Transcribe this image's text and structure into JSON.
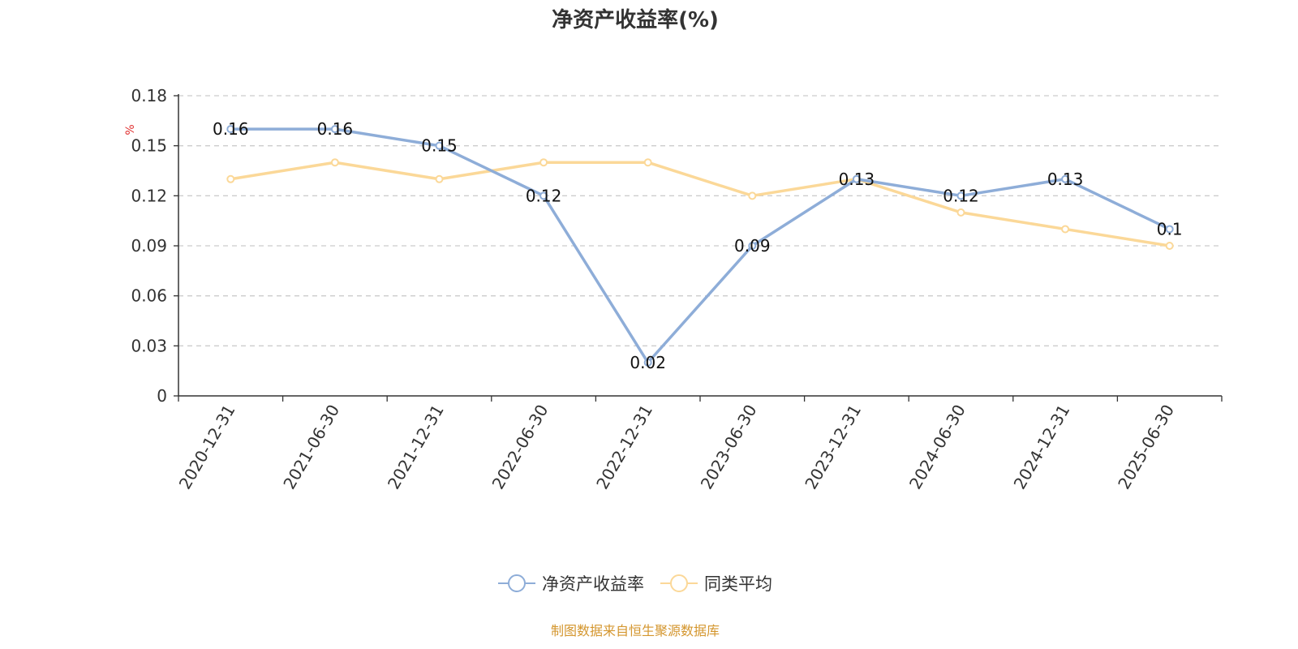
{
  "chart_data": {
    "type": "line",
    "title": "净资产收益率(%)",
    "ylabel": "%",
    "xlabel": "",
    "ylim": [
      0,
      0.18
    ],
    "yticks": [
      "0",
      "0.03",
      "0.06",
      "0.09",
      "0.12",
      "0.15",
      "0.18"
    ],
    "grid": true,
    "legend_position": "bottom",
    "categories": [
      "2020-12-31",
      "2021-06-30",
      "2021-12-31",
      "2022-06-30",
      "2022-12-31",
      "2023-06-30",
      "2023-12-31",
      "2024-06-30",
      "2024-12-31",
      "2025-06-30"
    ],
    "series": [
      {
        "name": "净资产收益率",
        "color": "#8eadd8",
        "values": [
          0.16,
          0.16,
          0.15,
          0.12,
          0.02,
          0.09,
          0.13,
          0.12,
          0.13,
          0.1
        ],
        "data_labels": [
          "0.16",
          "0.16",
          "0.15",
          "0.12",
          "0.02",
          "0.09",
          "0.13",
          "0.12",
          "0.13",
          "0.1"
        ]
      },
      {
        "name": "同类平均",
        "color": "#fbd898",
        "values": [
          0.13,
          0.14,
          0.13,
          0.14,
          0.14,
          0.12,
          0.13,
          0.11,
          0.1,
          0.09
        ]
      }
    ]
  },
  "source_note": "制图数据来自恒生聚源数据库"
}
